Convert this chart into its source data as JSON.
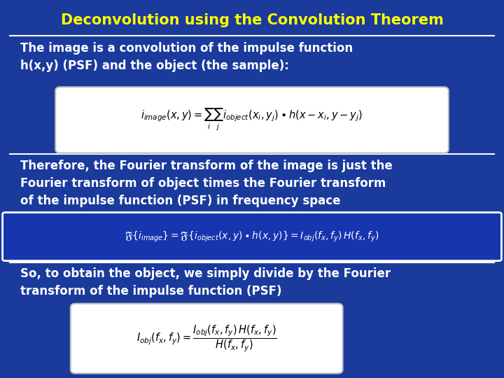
{
  "title": "Deconvolution using the Convolution Theorem",
  "title_color": "#FFFF00",
  "title_fontsize": 15,
  "background_color": "#1a3a9c",
  "text_color": "#FFFFFF",
  "text1": "The image is a convolution of the impulse function\nh(x,y) (PSF) and the object (the sample):",
  "text2": "Therefore, the Fourier transform of the image is just the\nFourier transform of object times the Fourier transform\nof the impulse function (PSF) in frequency space",
  "text3": "So, to obtain the object, we simply divide by the Fourier\ntransform of the impulse function (PSF)",
  "eq1": "$i_{image}(x,y) = \\sum_i \\sum_j i_{object}(x_i, y_j) \\bullet h(x - x_i, y - y_j)$",
  "eq2": "$\\mathfrak{F}\\{i_{image}\\} = \\mathfrak{F}\\{i_{object}(x,y) \\bullet h(x,y)\\} = I_{obj}(f_x, f_y)\\,H(f_x, f_y)$",
  "eq3": "$I_{obj}(f_x, f_y) = \\dfrac{I_{obj}(f_x, f_y)\\,H(f_x, f_y)}{H(f_x, f_y)}$",
  "eq_box_color": "#FFFFFF",
  "eq_text_color": "#000000",
  "figsize": [
    7.2,
    5.4
  ],
  "dpi": 100
}
